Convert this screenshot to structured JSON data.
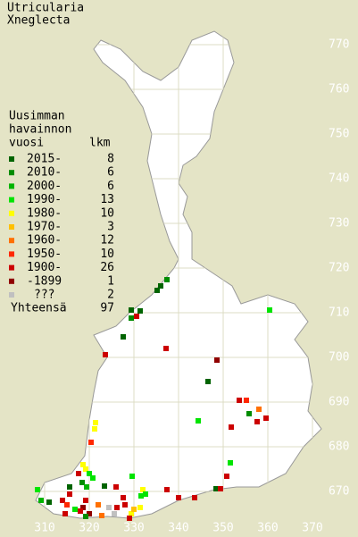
{
  "title": [
    "Utricularia",
    "Xneglecta"
  ],
  "legend": {
    "heading": [
      "Uusimman",
      "havainnon",
      "vuosi"
    ],
    "count_heading": "lkm",
    "items": [
      {
        "label": "2015-",
        "count": 8,
        "color": "#006400"
      },
      {
        "label": "2010-",
        "count": 6,
        "color": "#008c00"
      },
      {
        "label": "2000-",
        "count": 6,
        "color": "#00b400"
      },
      {
        "label": "1990-",
        "count": 13,
        "color": "#00e400"
      },
      {
        "label": "1980-",
        "count": 10,
        "color": "#ffff00"
      },
      {
        "label": "1970-",
        "count": 3,
        "color": "#ffc000"
      },
      {
        "label": "1960-",
        "count": 12,
        "color": "#ff7000"
      },
      {
        "label": "1950-",
        "count": 10,
        "color": "#ff2800"
      },
      {
        "label": "1900-",
        "count": 26,
        "color": "#cc0000"
      },
      {
        "label": "-1899",
        "count": 1,
        "color": "#900000"
      },
      {
        "label": "???",
        "count": 2,
        "color": "#c0c0c0"
      }
    ],
    "total_label": "Yhteensä",
    "total": 97
  },
  "grid": {
    "north": [
      770,
      760,
      750,
      740,
      730,
      720,
      710,
      700,
      690,
      680,
      670
    ],
    "east": [
      310,
      320,
      330,
      340,
      350,
      360,
      370
    ]
  }
}
